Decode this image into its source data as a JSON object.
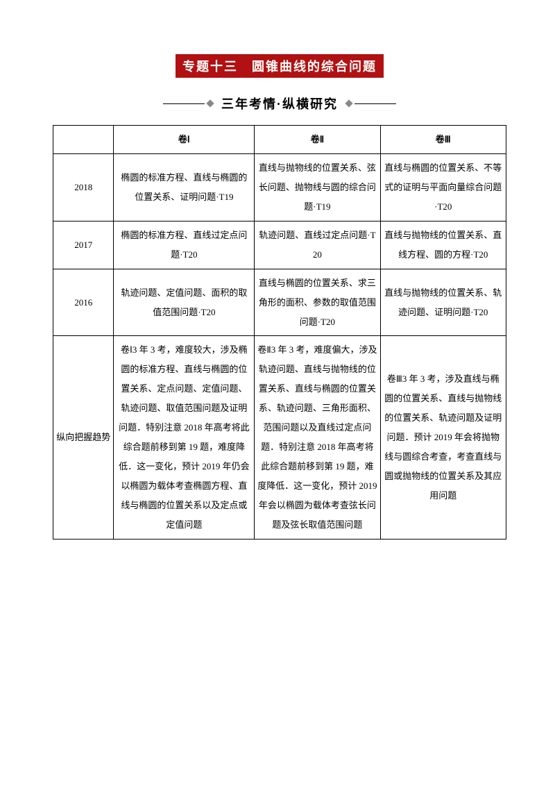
{
  "title": "专题十三　圆锥曲线的综合问题",
  "subtitle": "三年考情·纵横研究",
  "header": {
    "blank": "",
    "c1": "卷Ⅰ",
    "c2": "卷Ⅱ",
    "c3": "卷Ⅲ"
  },
  "rows": [
    {
      "year": "2018",
      "c1": "椭圆的标准方程、直线与椭圆的位置关系、证明问题·T19",
      "c2": "直线与抛物线的位置关系、弦长问题、抛物线与圆的综合问题·T19",
      "c3": "直线与椭圆的位置关系、不等式的证明与平面向量综合问题·T20"
    },
    {
      "year": "2017",
      "c1": "椭圆的标准方程、直线过定点问题·T20",
      "c2": "轨迹问题、直线过定点问题·T20",
      "c3": "直线与抛物线的位置关系、直线方程、圆的方程·T20"
    },
    {
      "year": "2016",
      "c1": "轨迹问题、定值问题、面积的取值范围问题·T20",
      "c2": "直线与椭圆的位置关系、求三角形的面积、参数的取值范围问题·T20",
      "c3": "直线与抛物线的位置关系、轨迹问题、证明问题·T20"
    },
    {
      "year": "纵向把握趋势",
      "c1": "卷Ⅰ3 年 3 考，难度较大，涉及椭圆的标准方程、直线与椭圆的位置关系、定点问题、定值问题、轨迹问题、取值范围问题及证明问题．特别注意 2018 年高考将此综合题前移到第 19 题，难度降低．这一变化，预计 2019 年仍会以椭圆为载体考查椭圆方程、直线与椭圆的位置关系以及定点或定值问题",
      "c2": "卷Ⅱ3 年 3 考，难度偏大，涉及轨迹问题、直线与抛物线的位置关系、直线与椭圆的位置关系、轨迹问题、三角形面积、范围问题以及直线过定点问题．特别注意 2018 年高考将此综合题前移到第 19 题，难度降低．这一变化，预计 2019 年会以椭圆为载体考查弦长问题及弦长取值范围问题",
      "c3": "卷Ⅲ3 年 3 考，涉及直线与椭圆的位置关系、直线与抛物线的位置关系、轨迹问题及证明问题．预计 2019 年会将抛物线与圆综合考查，考查直线与圆或抛物线的位置关系及其应用问题"
    }
  ]
}
